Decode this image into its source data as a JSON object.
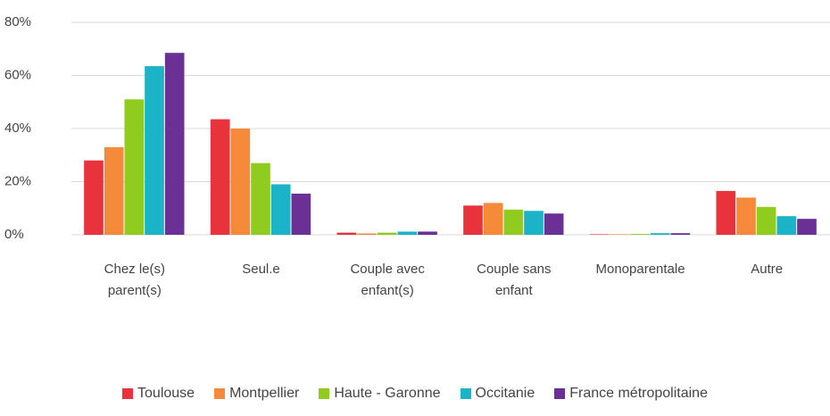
{
  "chart_data": {
    "type": "bar",
    "categories": [
      "Chez le(s) parent(s)",
      "Seul.e",
      "Couple avec enfant(s)",
      "Couple sans enfant",
      "Monoparentale",
      "Autre"
    ],
    "series": [
      {
        "name": "Toulouse",
        "color": "#e8323c",
        "values": [
          28,
          43.5,
          0.8,
          11,
          0.2,
          16.5
        ]
      },
      {
        "name": "Montpellier",
        "color": "#f58a3a",
        "values": [
          33,
          40,
          0.5,
          12,
          0.2,
          14
        ]
      },
      {
        "name": "Haute - Garonne",
        "color": "#8fcc1e",
        "values": [
          51,
          27,
          0.8,
          9.5,
          0.3,
          10.5
        ]
      },
      {
        "name": "Occitanie",
        "color": "#1ab3c8",
        "values": [
          63.5,
          19,
          1.2,
          9,
          0.6,
          7
        ]
      },
      {
        "name": "France métropolitaine",
        "color": "#6a3096",
        "values": [
          68.5,
          15.5,
          1.2,
          8,
          0.6,
          6
        ]
      }
    ],
    "ylim": [
      0,
      80
    ],
    "yticks": [
      {
        "value": 0,
        "label": "0%"
      },
      {
        "value": 20,
        "label": "20%"
      },
      {
        "value": 40,
        "label": "40%"
      },
      {
        "value": 60,
        "label": "60%"
      },
      {
        "value": 80,
        "label": "80%"
      }
    ],
    "grid": true
  }
}
